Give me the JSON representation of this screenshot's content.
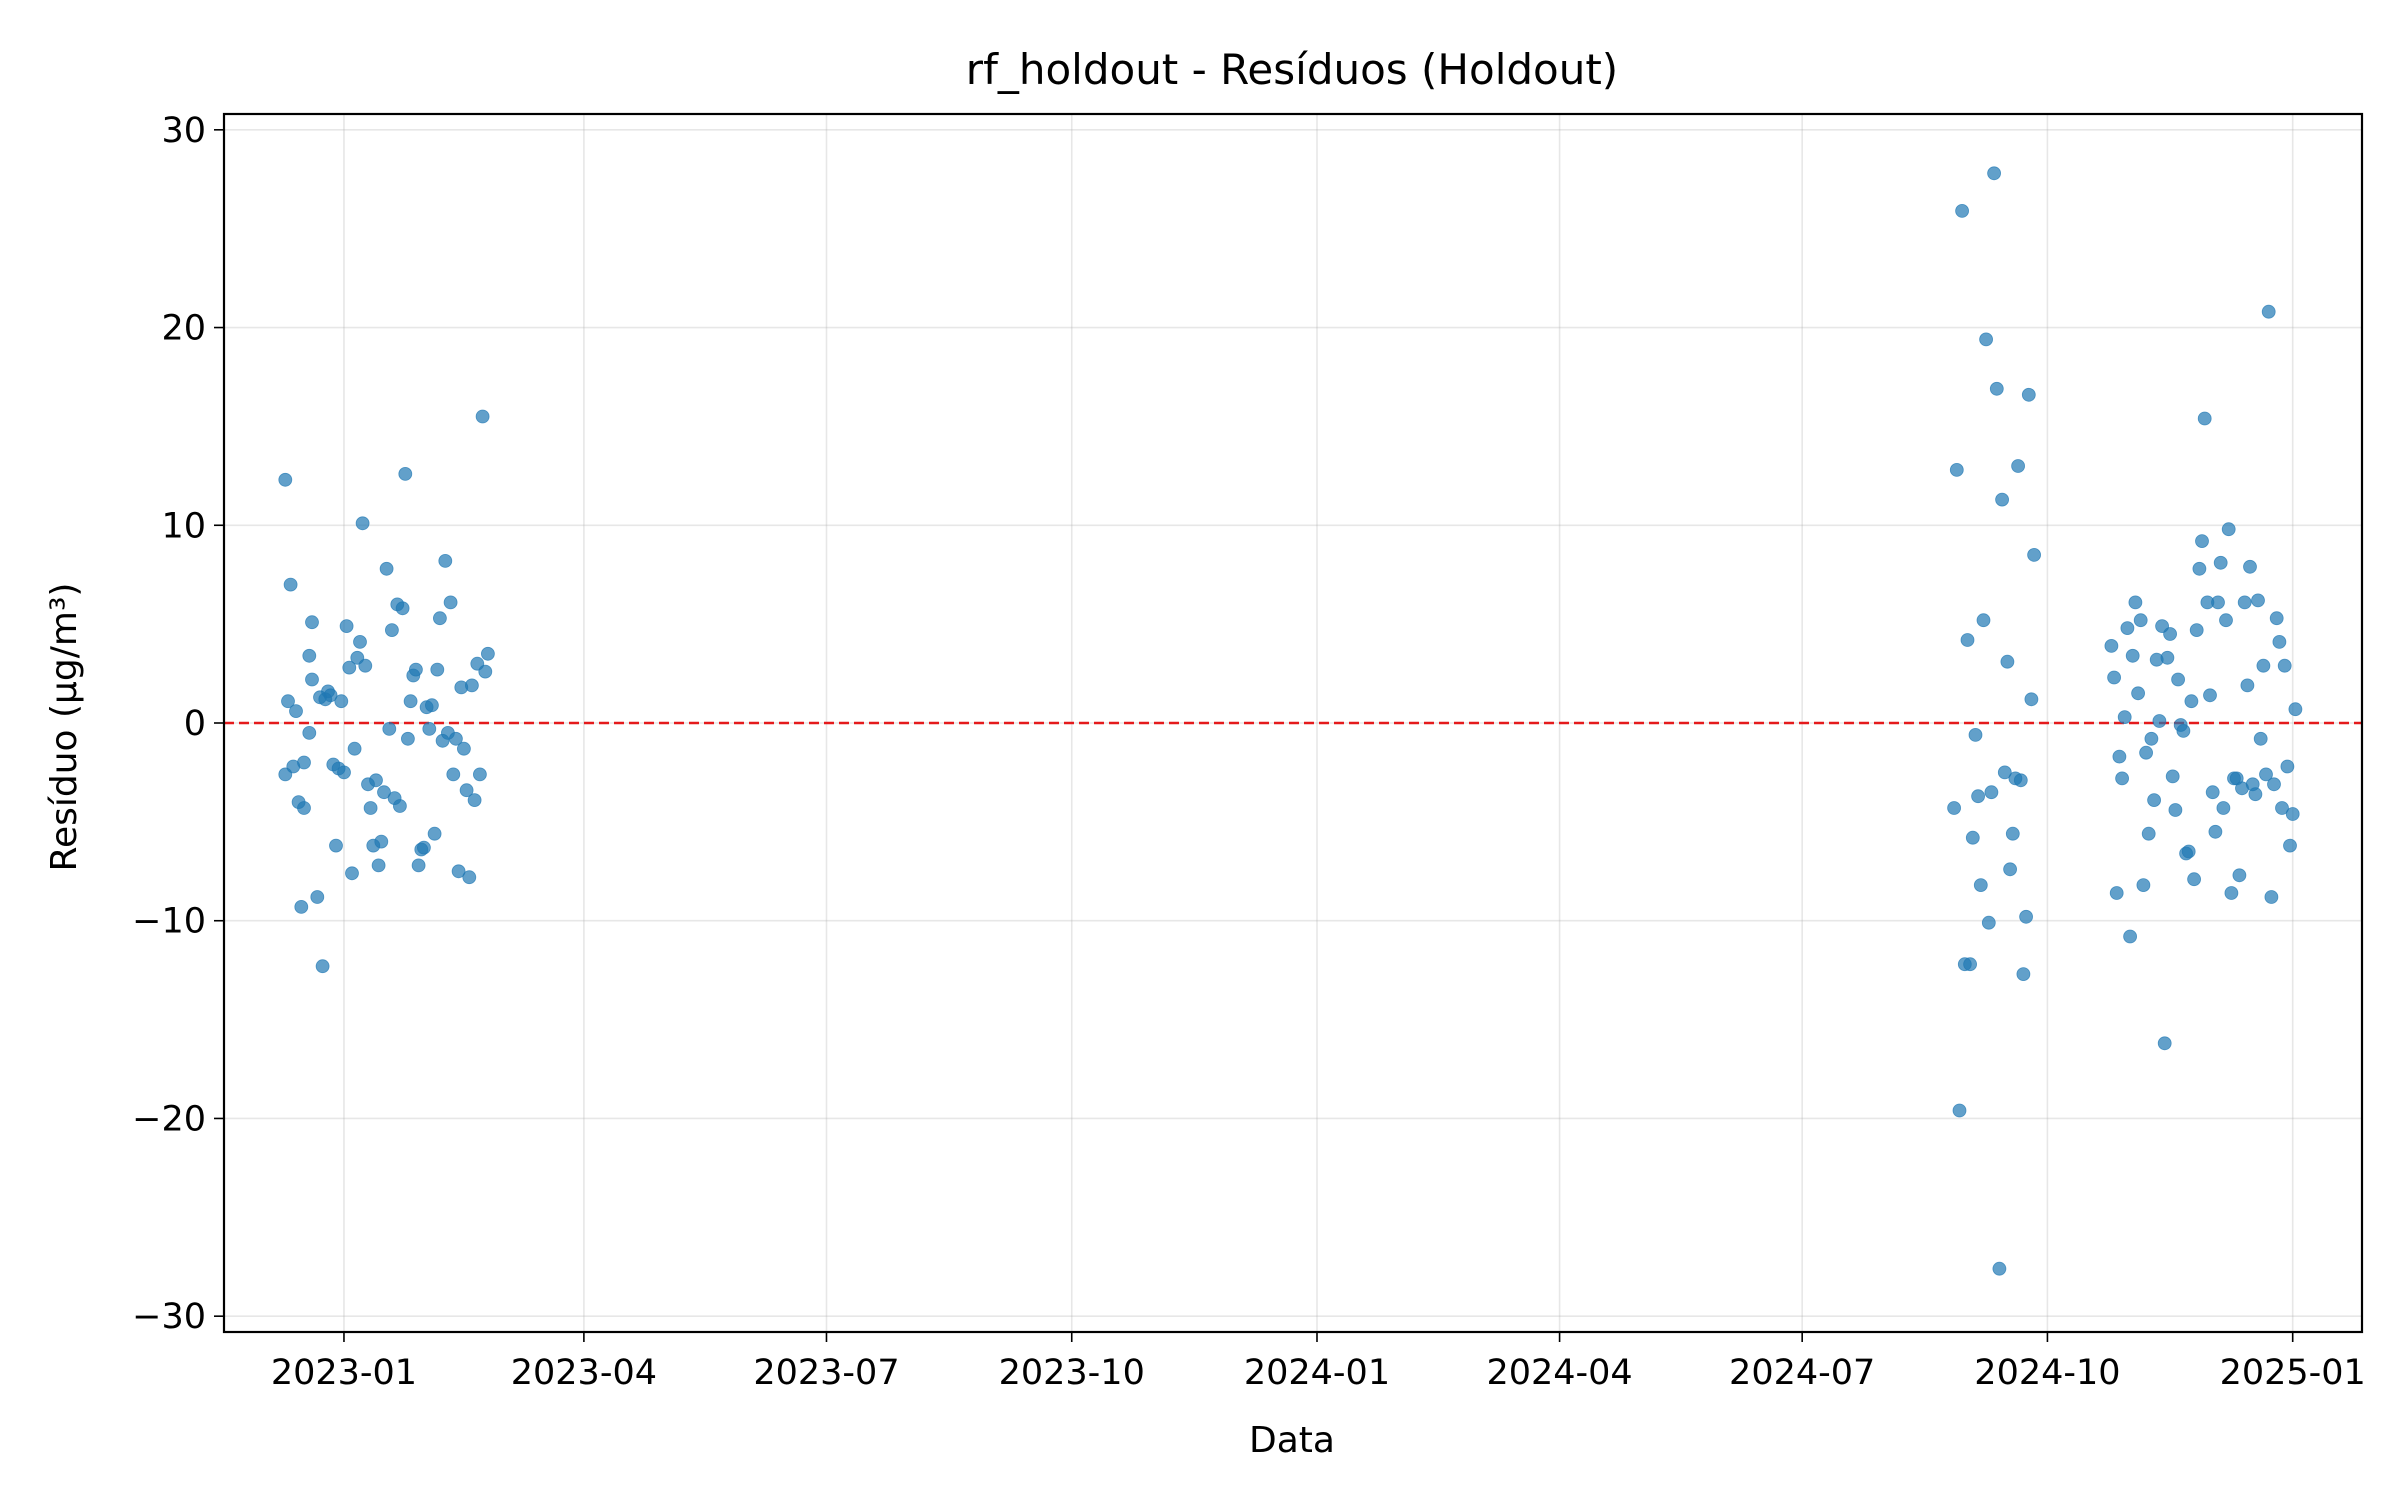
{
  "chart_data": {
    "type": "scatter",
    "title": "rf_holdout - Resíduos (Holdout)",
    "xlabel": "Data",
    "ylabel": "Resíduo (µg/m³)",
    "xlim": [
      "2022-11-17",
      "2025-01-27"
    ],
    "ylim": [
      -30.8,
      30.8
    ],
    "x_ticks": [
      {
        "date": "2023-01-01",
        "label": "2023-01"
      },
      {
        "date": "2023-04-01",
        "label": "2023-04"
      },
      {
        "date": "2023-07-01",
        "label": "2023-07"
      },
      {
        "date": "2023-10-01",
        "label": "2023-10"
      },
      {
        "date": "2024-01-01",
        "label": "2024-01"
      },
      {
        "date": "2024-04-01",
        "label": "2024-04"
      },
      {
        "date": "2024-07-01",
        "label": "2024-07"
      },
      {
        "date": "2024-10-01",
        "label": "2024-10"
      },
      {
        "date": "2025-01-01",
        "label": "2025-01"
      }
    ],
    "y_ticks": [
      {
        "value": 30,
        "label": "30"
      },
      {
        "value": 20,
        "label": "20"
      },
      {
        "value": 10,
        "label": "10"
      },
      {
        "value": 0,
        "label": "0"
      },
      {
        "value": -10,
        "label": "−10"
      },
      {
        "value": -20,
        "label": "−20"
      },
      {
        "value": -30,
        "label": "−30"
      }
    ],
    "grid": true,
    "reference_line": {
      "y": 0,
      "style": "dashed",
      "color": "#e41a1c"
    },
    "marker_color": "#1f77b4",
    "points": [
      {
        "x": "2022-12-10",
        "y": 12.3
      },
      {
        "x": "2022-12-10",
        "y": -2.6
      },
      {
        "x": "2022-12-11",
        "y": 1.1
      },
      {
        "x": "2022-12-12",
        "y": 7.0
      },
      {
        "x": "2022-12-13",
        "y": -2.2
      },
      {
        "x": "2022-12-14",
        "y": 0.6
      },
      {
        "x": "2022-12-15",
        "y": -4.0
      },
      {
        "x": "2022-12-16",
        "y": -9.3
      },
      {
        "x": "2022-12-17",
        "y": -2.0
      },
      {
        "x": "2022-12-17",
        "y": -4.3
      },
      {
        "x": "2022-12-19",
        "y": -0.5
      },
      {
        "x": "2022-12-19",
        "y": 3.4
      },
      {
        "x": "2022-12-20",
        "y": 2.2
      },
      {
        "x": "2022-12-20",
        "y": 5.1
      },
      {
        "x": "2022-12-22",
        "y": -8.8
      },
      {
        "x": "2022-12-23",
        "y": 1.3
      },
      {
        "x": "2022-12-24",
        "y": -12.3
      },
      {
        "x": "2022-12-25",
        "y": 1.2
      },
      {
        "x": "2022-12-26",
        "y": 1.6
      },
      {
        "x": "2022-12-27",
        "y": 1.4
      },
      {
        "x": "2022-12-28",
        "y": -2.1
      },
      {
        "x": "2022-12-29",
        "y": -6.2
      },
      {
        "x": "2022-12-30",
        "y": -2.3
      },
      {
        "x": "2022-12-31",
        "y": 1.1
      },
      {
        "x": "2023-01-01",
        "y": -2.5
      },
      {
        "x": "2023-01-02",
        "y": 4.9
      },
      {
        "x": "2023-01-03",
        "y": 2.8
      },
      {
        "x": "2023-01-04",
        "y": -7.6
      },
      {
        "x": "2023-01-05",
        "y": -1.3
      },
      {
        "x": "2023-01-06",
        "y": 3.3
      },
      {
        "x": "2023-01-07",
        "y": 4.1
      },
      {
        "x": "2023-01-08",
        "y": 10.1
      },
      {
        "x": "2023-01-09",
        "y": 2.9
      },
      {
        "x": "2023-01-10",
        "y": -3.1
      },
      {
        "x": "2023-01-11",
        "y": -4.3
      },
      {
        "x": "2023-01-12",
        "y": -6.2
      },
      {
        "x": "2023-01-13",
        "y": -2.9
      },
      {
        "x": "2023-01-14",
        "y": -7.2
      },
      {
        "x": "2023-01-15",
        "y": -6.0
      },
      {
        "x": "2023-01-16",
        "y": -3.5
      },
      {
        "x": "2023-01-17",
        "y": 7.8
      },
      {
        "x": "2023-01-18",
        "y": -0.3
      },
      {
        "x": "2023-01-19",
        "y": 4.7
      },
      {
        "x": "2023-01-20",
        "y": -3.8
      },
      {
        "x": "2023-01-21",
        "y": 6.0
      },
      {
        "x": "2023-01-22",
        "y": -4.2
      },
      {
        "x": "2023-01-23",
        "y": 5.8
      },
      {
        "x": "2023-01-24",
        "y": 12.6
      },
      {
        "x": "2023-01-25",
        "y": -0.8
      },
      {
        "x": "2023-01-26",
        "y": 1.1
      },
      {
        "x": "2023-01-27",
        "y": 2.4
      },
      {
        "x": "2023-01-28",
        "y": 2.7
      },
      {
        "x": "2023-01-29",
        "y": -7.2
      },
      {
        "x": "2023-01-30",
        "y": -6.4
      },
      {
        "x": "2023-01-31",
        "y": -6.3
      },
      {
        "x": "2023-02-01",
        "y": 0.8
      },
      {
        "x": "2023-02-02",
        "y": -0.3
      },
      {
        "x": "2023-02-03",
        "y": 0.9
      },
      {
        "x": "2023-02-04",
        "y": -5.6
      },
      {
        "x": "2023-02-05",
        "y": 2.7
      },
      {
        "x": "2023-02-06",
        "y": 5.3
      },
      {
        "x": "2023-02-07",
        "y": -0.9
      },
      {
        "x": "2023-02-08",
        "y": 8.2
      },
      {
        "x": "2023-02-09",
        "y": -0.5
      },
      {
        "x": "2023-02-10",
        "y": 6.1
      },
      {
        "x": "2023-02-11",
        "y": -2.6
      },
      {
        "x": "2023-02-12",
        "y": -0.8
      },
      {
        "x": "2023-02-13",
        "y": -7.5
      },
      {
        "x": "2023-02-14",
        "y": 1.8
      },
      {
        "x": "2023-02-15",
        "y": -1.3
      },
      {
        "x": "2023-02-16",
        "y": -3.4
      },
      {
        "x": "2023-02-17",
        "y": -7.8
      },
      {
        "x": "2023-02-18",
        "y": 1.9
      },
      {
        "x": "2023-02-19",
        "y": -3.9
      },
      {
        "x": "2023-02-20",
        "y": 3.0
      },
      {
        "x": "2023-02-21",
        "y": -2.6
      },
      {
        "x": "2023-02-22",
        "y": 15.5
      },
      {
        "x": "2023-02-23",
        "y": 2.6
      },
      {
        "x": "2023-02-24",
        "y": 3.5
      },
      {
        "x": "2024-08-27",
        "y": -4.3
      },
      {
        "x": "2024-08-28",
        "y": 12.8
      },
      {
        "x": "2024-08-29",
        "y": -19.6
      },
      {
        "x": "2024-08-30",
        "y": 25.9
      },
      {
        "x": "2024-08-31",
        "y": -12.2
      },
      {
        "x": "2024-09-01",
        "y": 4.2
      },
      {
        "x": "2024-09-02",
        "y": -12.2
      },
      {
        "x": "2024-09-03",
        "y": -5.8
      },
      {
        "x": "2024-09-04",
        "y": -0.6
      },
      {
        "x": "2024-09-05",
        "y": -3.7
      },
      {
        "x": "2024-09-06",
        "y": -8.2
      },
      {
        "x": "2024-09-07",
        "y": 5.2
      },
      {
        "x": "2024-09-08",
        "y": 19.4
      },
      {
        "x": "2024-09-09",
        "y": -10.1
      },
      {
        "x": "2024-09-10",
        "y": -3.5
      },
      {
        "x": "2024-09-11",
        "y": 27.8
      },
      {
        "x": "2024-09-12",
        "y": 16.9
      },
      {
        "x": "2024-09-13",
        "y": -27.6
      },
      {
        "x": "2024-09-14",
        "y": 11.3
      },
      {
        "x": "2024-09-15",
        "y": -2.5
      },
      {
        "x": "2024-09-16",
        "y": 3.1
      },
      {
        "x": "2024-09-17",
        "y": -7.4
      },
      {
        "x": "2024-09-18",
        "y": -5.6
      },
      {
        "x": "2024-09-19",
        "y": -2.8
      },
      {
        "x": "2024-09-20",
        "y": 13.0
      },
      {
        "x": "2024-09-21",
        "y": -2.9
      },
      {
        "x": "2024-09-22",
        "y": -12.7
      },
      {
        "x": "2024-09-23",
        "y": -9.8
      },
      {
        "x": "2024-09-24",
        "y": 16.6
      },
      {
        "x": "2024-09-25",
        "y": 1.2
      },
      {
        "x": "2024-09-26",
        "y": 8.5
      },
      {
        "x": "2024-10-25",
        "y": 3.9
      },
      {
        "x": "2024-10-26",
        "y": 2.3
      },
      {
        "x": "2024-10-27",
        "y": -8.6
      },
      {
        "x": "2024-10-28",
        "y": -1.7
      },
      {
        "x": "2024-10-29",
        "y": -2.8
      },
      {
        "x": "2024-10-30",
        "y": 0.3
      },
      {
        "x": "2024-10-31",
        "y": 4.8
      },
      {
        "x": "2024-11-01",
        "y": -10.8
      },
      {
        "x": "2024-11-02",
        "y": 3.4
      },
      {
        "x": "2024-11-03",
        "y": 6.1
      },
      {
        "x": "2024-11-04",
        "y": 1.5
      },
      {
        "x": "2024-11-05",
        "y": 5.2
      },
      {
        "x": "2024-11-06",
        "y": -8.2
      },
      {
        "x": "2024-11-07",
        "y": -1.5
      },
      {
        "x": "2024-11-08",
        "y": -5.6
      },
      {
        "x": "2024-11-09",
        "y": -0.8
      },
      {
        "x": "2024-11-10",
        "y": -3.9
      },
      {
        "x": "2024-11-11",
        "y": 3.2
      },
      {
        "x": "2024-11-12",
        "y": 0.1
      },
      {
        "x": "2024-11-13",
        "y": 4.9
      },
      {
        "x": "2024-11-14",
        "y": -16.2
      },
      {
        "x": "2024-11-15",
        "y": 3.3
      },
      {
        "x": "2024-11-16",
        "y": 4.5
      },
      {
        "x": "2024-11-17",
        "y": -2.7
      },
      {
        "x": "2024-11-18",
        "y": -4.4
      },
      {
        "x": "2024-11-19",
        "y": 2.2
      },
      {
        "x": "2024-11-20",
        "y": -0.1
      },
      {
        "x": "2024-11-21",
        "y": -0.4
      },
      {
        "x": "2024-11-22",
        "y": -6.6
      },
      {
        "x": "2024-11-23",
        "y": -6.5
      },
      {
        "x": "2024-11-24",
        "y": 1.1
      },
      {
        "x": "2024-11-25",
        "y": -7.9
      },
      {
        "x": "2024-11-26",
        "y": 4.7
      },
      {
        "x": "2024-11-27",
        "y": 7.8
      },
      {
        "x": "2024-11-28",
        "y": 9.2
      },
      {
        "x": "2024-11-29",
        "y": 15.4
      },
      {
        "x": "2024-11-30",
        "y": 6.1
      },
      {
        "x": "2024-12-01",
        "y": 1.4
      },
      {
        "x": "2024-12-02",
        "y": -3.5
      },
      {
        "x": "2024-12-03",
        "y": -5.5
      },
      {
        "x": "2024-12-04",
        "y": 6.1
      },
      {
        "x": "2024-12-05",
        "y": 8.1
      },
      {
        "x": "2024-12-06",
        "y": -4.3
      },
      {
        "x": "2024-12-07",
        "y": 5.2
      },
      {
        "x": "2024-12-08",
        "y": 9.8
      },
      {
        "x": "2024-12-09",
        "y": -8.6
      },
      {
        "x": "2024-12-10",
        "y": -2.8
      },
      {
        "x": "2024-12-11",
        "y": -2.8
      },
      {
        "x": "2024-12-12",
        "y": -7.7
      },
      {
        "x": "2024-12-13",
        "y": -3.3
      },
      {
        "x": "2024-12-14",
        "y": 6.1
      },
      {
        "x": "2024-12-15",
        "y": 1.9
      },
      {
        "x": "2024-12-16",
        "y": 7.9
      },
      {
        "x": "2024-12-17",
        "y": -3.1
      },
      {
        "x": "2024-12-18",
        "y": -3.6
      },
      {
        "x": "2024-12-19",
        "y": 6.2
      },
      {
        "x": "2024-12-20",
        "y": -0.8
      },
      {
        "x": "2024-12-21",
        "y": 2.9
      },
      {
        "x": "2024-12-22",
        "y": -2.6
      },
      {
        "x": "2024-12-23",
        "y": 20.8
      },
      {
        "x": "2024-12-24",
        "y": -8.8
      },
      {
        "x": "2024-12-25",
        "y": -3.1
      },
      {
        "x": "2024-12-26",
        "y": 5.3
      },
      {
        "x": "2024-12-27",
        "y": 4.1
      },
      {
        "x": "2024-12-28",
        "y": -4.3
      },
      {
        "x": "2024-12-29",
        "y": 2.9
      },
      {
        "x": "2024-12-30",
        "y": -2.2
      },
      {
        "x": "2024-12-31",
        "y": -6.2
      },
      {
        "x": "2025-01-01",
        "y": -4.6
      },
      {
        "x": "2025-01-02",
        "y": 0.7
      }
    ]
  }
}
